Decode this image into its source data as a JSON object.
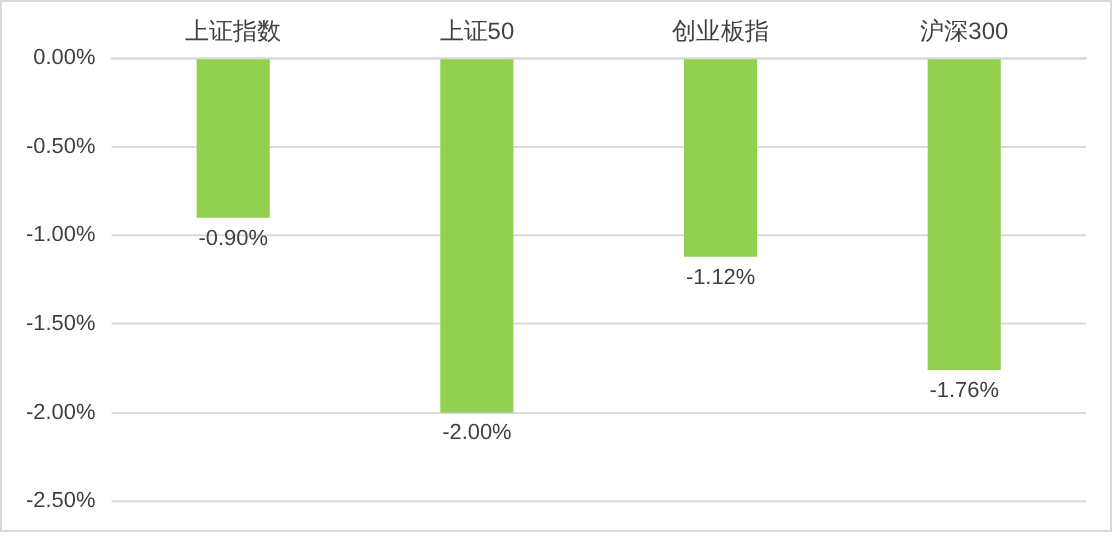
{
  "chart_data": {
    "type": "bar",
    "categories": [
      "上证指数",
      "上证50",
      "创业板指",
      "沪深300"
    ],
    "values": [
      -0.9,
      -2.0,
      -1.12,
      -1.76
    ],
    "color": "#92d050",
    "value_labels": [
      "-0.90%",
      "-2.00%",
      "-1.12%",
      "-1.76%"
    ],
    "ylim": [
      -2.5,
      0
    ],
    "yticks": [
      {
        "value": 0,
        "label": "0.00%"
      },
      {
        "value": -0.5,
        "label": "-0.50%"
      },
      {
        "value": -1,
        "label": "-1.00%"
      },
      {
        "value": -1.5,
        "label": "-1.50%"
      },
      {
        "value": -2,
        "label": "-2.00%"
      },
      {
        "value": -2.5,
        "label": "-2.50%"
      }
    ],
    "grid": "y"
  }
}
